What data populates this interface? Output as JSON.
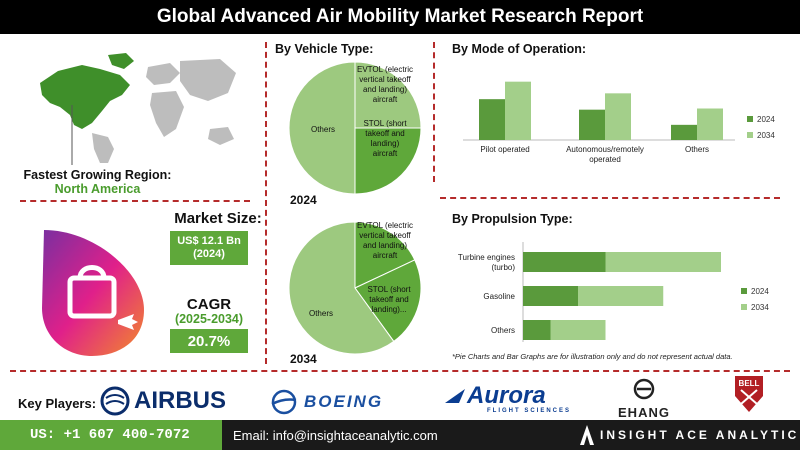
{
  "header": {
    "title": "Global Advanced Air Mobility Market Research Report"
  },
  "region": {
    "label": "Fastest Growing Region:",
    "value": "North America"
  },
  "market_size": {
    "label": "Market Size:",
    "value": "US$ 12.1 Bn",
    "year": "(2024)"
  },
  "cagr": {
    "label": "CAGR",
    "period": "(2025-2034)",
    "value": "20.7%"
  },
  "vehicle_section": {
    "title": "By Vehicle Type:",
    "year_2024": "2024",
    "year_2034": "2034"
  },
  "operation_section": {
    "title": "By  Mode of Operation:"
  },
  "propulsion_section": {
    "title": "By Propulsion Type:"
  },
  "footnote": "*Pie Charts and Bar Graphs are for illustration only and do not represent actual data.",
  "players": {
    "label": "Key Players:",
    "logos": [
      "AIRBUS",
      "BOEING",
      "Aurora",
      "FLIGHT SCIENCES",
      "EHANG",
      "BELL"
    ]
  },
  "footer": {
    "phone": "US: +1 607 400-7072",
    "email": "Email: info@insightaceanalytic.com",
    "brand": "INSIGHT ACE ANALYTIC"
  },
  "colors": {
    "dark_green": "#5a9a3c",
    "light_green": "#a3cf8a",
    "accent_red": "#b52b2b"
  },
  "chart_data": [
    {
      "type": "pie",
      "title": "2024",
      "labels": [
        "EVTOL (electric vertical takeoff and landing) aircraft",
        "STOL (short takeoff and landing) aircraft",
        "Others"
      ],
      "display_labels": [
        "EVTOL (electric vertical takeoff and landing) aircraft",
        "STOL (short takeoff and landing) aircraft",
        "Others"
      ],
      "values": [
        25,
        25,
        50
      ],
      "colors": [
        "#9dc97f",
        "#5fa83a",
        "#9dc97f"
      ]
    },
    {
      "type": "pie",
      "title": "2034",
      "labels": [
        "EVTOL (electric vertical takeoff and landing) aircraft",
        "STOL (short takeoff and landing) aircraft",
        "Others"
      ],
      "display_labels": [
        "EVTOL (electric vertical takeoff and landing) aircraft",
        "STOL (short takeoff and landing)...",
        "Others"
      ],
      "values": [
        18,
        22,
        60
      ],
      "colors": [
        "#5fa83a",
        "#5fa83a",
        "#9dc97f"
      ]
    },
    {
      "type": "bar",
      "orientation": "vertical",
      "categories": [
        "Pilot operated",
        "Autonomous/remotely operated",
        "Others"
      ],
      "series": [
        {
          "name": "2024",
          "values": [
            3.5,
            2.6,
            1.3
          ],
          "color": "#5a9a3c"
        },
        {
          "name": "2034",
          "values": [
            5.0,
            4.0,
            2.7
          ],
          "color": "#a3cf8a"
        }
      ],
      "ylim": [
        0,
        6
      ],
      "legend": "right"
    },
    {
      "type": "bar",
      "orientation": "horizontal",
      "stacked": true,
      "categories": [
        "Turbine engines (turbo)",
        "Gasoline",
        "Others"
      ],
      "series": [
        {
          "name": "2024",
          "values": [
            3.0,
            2.0,
            1.0
          ],
          "color": "#5a9a3c"
        },
        {
          "name": "2034",
          "values": [
            4.2,
            3.1,
            2.0
          ],
          "color": "#a3cf8a"
        }
      ],
      "xlim": [
        0,
        8
      ],
      "legend": "right"
    }
  ]
}
